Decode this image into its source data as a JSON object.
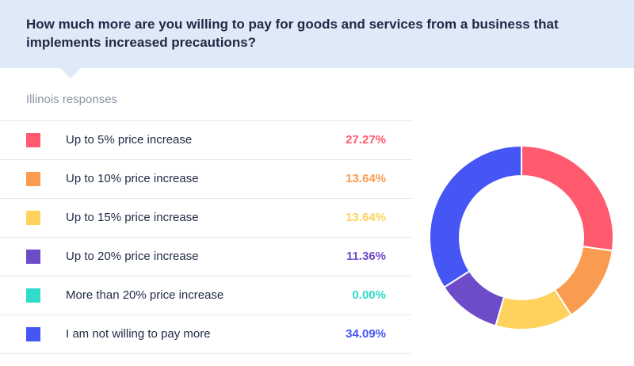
{
  "header": {
    "question": "How much more are you willing to pay for goods and services from a business that implements increased precautions?"
  },
  "subtitle": "Illinois responses",
  "chart_data": {
    "type": "pie",
    "donut": true,
    "title": "How much more are you willing to pay for goods and services from a business that implements increased precautions?",
    "subtitle": "Illinois responses",
    "unit": "%",
    "categories": [
      "Up to 5% price increase",
      "Up to 10% price increase",
      "Up to 15% price increase",
      "Up to 20% price increase",
      "More than 20% price increase",
      "I am not willing to pay more"
    ],
    "values": [
      27.27,
      13.64,
      13.64,
      11.36,
      0.0,
      34.09
    ],
    "value_labels": [
      "27.27%",
      "13.64%",
      "13.64%",
      "11.36%",
      "0.00%",
      "34.09%"
    ],
    "colors": [
      "#ff5a6e",
      "#f99c4f",
      "#ffd25e",
      "#6e4cc9",
      "#2fdcc9",
      "#4656f5"
    ],
    "legend_placement": "left"
  }
}
